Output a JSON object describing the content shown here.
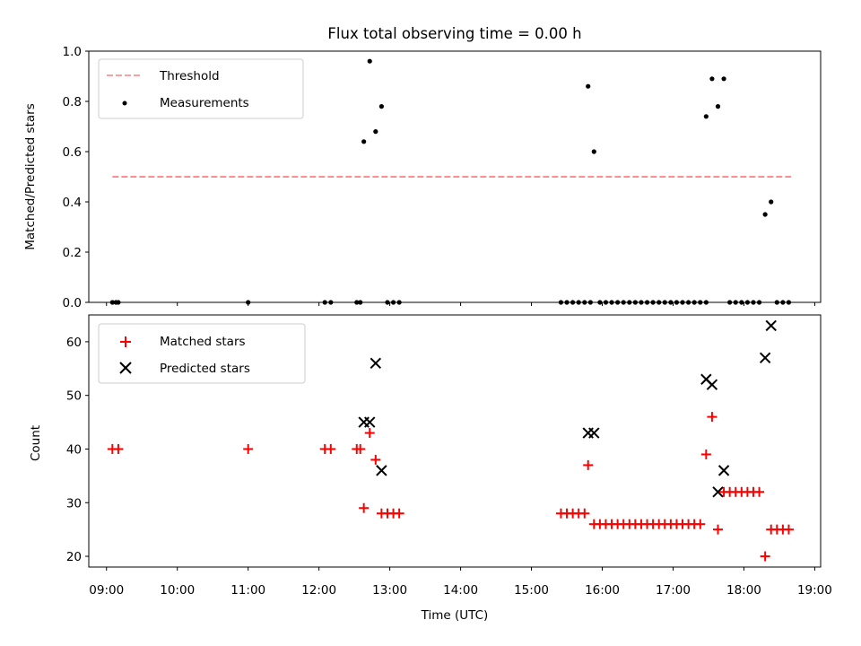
{
  "chart_data": [
    {
      "type": "scatter",
      "panel": "top",
      "title": "Flux total observing time = 0.00 h",
      "xlabel": "",
      "ylabel": "Matched/Predicted stars",
      "ylim": [
        0,
        1
      ],
      "xlim": [
        "08:45",
        "19:05"
      ],
      "yticks": [
        "0.0",
        "0.2",
        "0.4",
        "0.6",
        "0.8",
        "1.0"
      ],
      "legend_position": "top-left",
      "series": [
        {
          "name": "Threshold",
          "kind": "dashed-line",
          "color": "#ff7f7f",
          "x": [
            "09:05",
            "18:40"
          ],
          "y": [
            0.5,
            0.5
          ]
        },
        {
          "name": "Measurements",
          "kind": "points",
          "color": "#000000",
          "points": [
            [
              "09:05",
              0
            ],
            [
              "09:08",
              0
            ],
            [
              "09:10",
              0
            ],
            [
              "11:00",
              0
            ],
            [
              "12:05",
              0
            ],
            [
              "12:10",
              0
            ],
            [
              "12:32",
              0
            ],
            [
              "12:35",
              0
            ],
            [
              "12:38",
              0.64
            ],
            [
              "12:43",
              0.96
            ],
            [
              "12:48",
              0.68
            ],
            [
              "12:53",
              0.78
            ],
            [
              "12:58",
              0
            ],
            [
              "13:03",
              0
            ],
            [
              "13:08",
              0
            ],
            [
              "15:25",
              0
            ],
            [
              "15:30",
              0
            ],
            [
              "15:35",
              0
            ],
            [
              "15:40",
              0
            ],
            [
              "15:45",
              0
            ],
            [
              "15:50",
              0
            ],
            [
              "15:48",
              0.86
            ],
            [
              "15:53",
              0.6
            ],
            [
              "15:58",
              0
            ],
            [
              "16:03",
              0
            ],
            [
              "16:08",
              0
            ],
            [
              "16:13",
              0
            ],
            [
              "16:18",
              0
            ],
            [
              "16:23",
              0
            ],
            [
              "16:28",
              0
            ],
            [
              "16:33",
              0
            ],
            [
              "16:38",
              0
            ],
            [
              "16:43",
              0
            ],
            [
              "16:48",
              0
            ],
            [
              "16:53",
              0
            ],
            [
              "16:58",
              0
            ],
            [
              "17:03",
              0
            ],
            [
              "17:08",
              0
            ],
            [
              "17:13",
              0
            ],
            [
              "17:18",
              0
            ],
            [
              "17:23",
              0
            ],
            [
              "17:28",
              0
            ],
            [
              "17:28",
              0.74
            ],
            [
              "17:33",
              0.89
            ],
            [
              "17:38",
              0.78
            ],
            [
              "17:43",
              0.89
            ],
            [
              "17:48",
              0
            ],
            [
              "17:53",
              0
            ],
            [
              "17:58",
              0
            ],
            [
              "18:03",
              0
            ],
            [
              "18:08",
              0
            ],
            [
              "18:13",
              0
            ],
            [
              "18:18",
              0.35
            ],
            [
              "18:23",
              0.4
            ],
            [
              "18:28",
              0
            ],
            [
              "18:33",
              0
            ],
            [
              "18:38",
              0
            ]
          ]
        }
      ]
    },
    {
      "type": "scatter",
      "panel": "bottom",
      "title": "",
      "xlabel": "Time (UTC)",
      "ylabel": "Count",
      "ylim": [
        18,
        65
      ],
      "xlim": [
        "08:45",
        "19:05"
      ],
      "yticks": [
        "20",
        "30",
        "40",
        "50",
        "60"
      ],
      "xticks": [
        "09:00",
        "10:00",
        "11:00",
        "12:00",
        "13:00",
        "14:00",
        "15:00",
        "16:00",
        "17:00",
        "18:00",
        "19:00"
      ],
      "legend_position": "top-left",
      "series": [
        {
          "name": "Matched stars",
          "marker": "+",
          "color": "#ff0000",
          "points": [
            [
              "09:05",
              40
            ],
            [
              "09:10",
              40
            ],
            [
              "11:00",
              40
            ],
            [
              "12:05",
              40
            ],
            [
              "12:10",
              40
            ],
            [
              "12:32",
              40
            ],
            [
              "12:35",
              40
            ],
            [
              "12:38",
              29
            ],
            [
              "12:43",
              43
            ],
            [
              "12:48",
              38
            ],
            [
              "12:53",
              28
            ],
            [
              "12:58",
              28
            ],
            [
              "13:03",
              28
            ],
            [
              "13:08",
              28
            ],
            [
              "15:25",
              28
            ],
            [
              "15:30",
              28
            ],
            [
              "15:35",
              28
            ],
            [
              "15:40",
              28
            ],
            [
              "15:45",
              28
            ],
            [
              "15:48",
              37
            ],
            [
              "15:53",
              26
            ],
            [
              "15:58",
              26
            ],
            [
              "16:03",
              26
            ],
            [
              "16:08",
              26
            ],
            [
              "16:13",
              26
            ],
            [
              "16:18",
              26
            ],
            [
              "16:23",
              26
            ],
            [
              "16:28",
              26
            ],
            [
              "16:33",
              26
            ],
            [
              "16:38",
              26
            ],
            [
              "16:43",
              26
            ],
            [
              "16:48",
              26
            ],
            [
              "16:53",
              26
            ],
            [
              "16:58",
              26
            ],
            [
              "17:03",
              26
            ],
            [
              "17:08",
              26
            ],
            [
              "17:13",
              26
            ],
            [
              "17:18",
              26
            ],
            [
              "17:23",
              26
            ],
            [
              "17:28",
              39
            ],
            [
              "17:33",
              46
            ],
            [
              "17:38",
              25
            ],
            [
              "17:43",
              32
            ],
            [
              "17:48",
              32
            ],
            [
              "17:53",
              32
            ],
            [
              "17:58",
              32
            ],
            [
              "18:03",
              32
            ],
            [
              "18:08",
              32
            ],
            [
              "18:13",
              32
            ],
            [
              "18:18",
              20
            ],
            [
              "18:23",
              25
            ],
            [
              "18:28",
              25
            ],
            [
              "18:33",
              25
            ],
            [
              "18:38",
              25
            ]
          ]
        },
        {
          "name": "Predicted stars",
          "marker": "x",
          "color": "#000000",
          "points": [
            [
              "12:38",
              45
            ],
            [
              "12:43",
              45
            ],
            [
              "12:48",
              56
            ],
            [
              "12:53",
              36
            ],
            [
              "15:48",
              43
            ],
            [
              "15:53",
              43
            ],
            [
              "17:28",
              53
            ],
            [
              "17:33",
              52
            ],
            [
              "17:38",
              32
            ],
            [
              "17:43",
              36
            ],
            [
              "18:18",
              57
            ],
            [
              "18:23",
              63
            ]
          ]
        }
      ]
    }
  ]
}
